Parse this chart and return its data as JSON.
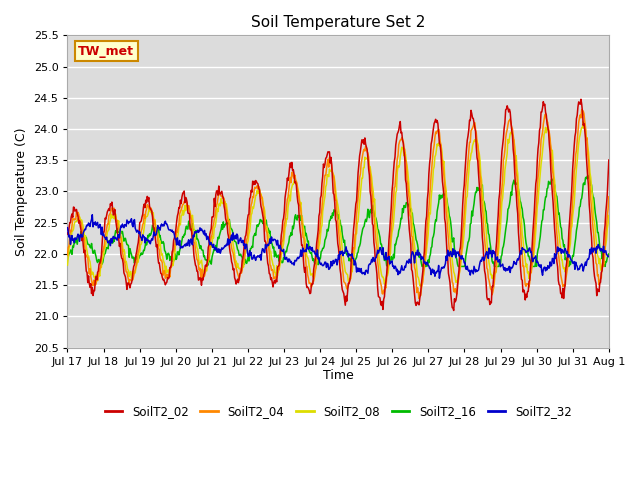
{
  "title": "Soil Temperature Set 2",
  "xlabel": "Time",
  "ylabel": "Soil Temperature (C)",
  "ylim": [
    20.5,
    25.5
  ],
  "bg_color": "#dcdcdc",
  "plot_bg_color": "#dcdcdc",
  "annotation_text": "TW_met",
  "annotation_color": "#cc0000",
  "annotation_bg": "#ffffcc",
  "annotation_border": "#cc8800",
  "series_colors": {
    "SoilT2_02": "#cc0000",
    "SoilT2_04": "#ff8800",
    "SoilT2_08": "#dddd00",
    "SoilT2_16": "#00bb00",
    "SoilT2_32": "#0000cc"
  },
  "xtick_labels": [
    "Jul 17",
    "Jul 18",
    "Jul 19",
    "Jul 20",
    "Jul 21",
    "Jul 22",
    "Jul 23",
    "Jul 24",
    "Jul 25",
    "Jul 26",
    "Jul 27",
    "Jul 28",
    "Jul 29",
    "Jul 30",
    "Jul 31",
    "Aug 1"
  ],
  "n_points": 720,
  "total_days": 15,
  "legend_labels": [
    "SoilT2_02",
    "SoilT2_04",
    "SoilT2_08",
    "SoilT2_16",
    "SoilT2_32"
  ]
}
